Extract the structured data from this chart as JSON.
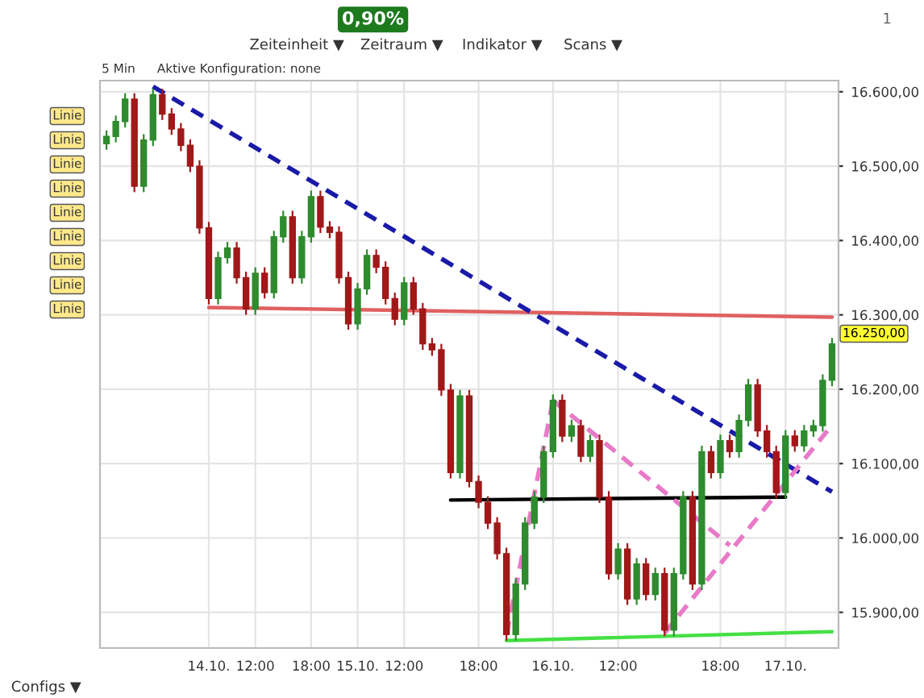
{
  "chart_data": {
    "type": "candlestick",
    "categories": [
      null,
      null,
      null,
      null,
      null,
      null,
      null,
      null,
      null,
      null,
      null,
      "14.10.",
      null,
      null,
      null,
      null,
      "12:00",
      null,
      null,
      null,
      null,
      null,
      "18:00",
      null,
      null,
      null,
      null,
      "15.10.",
      null,
      null,
      null,
      null,
      "12:00",
      null,
      null,
      null,
      null,
      null,
      null,
      null,
      "18:00",
      null,
      null,
      null,
      null,
      null,
      null,
      null,
      "16.10.",
      null,
      null,
      null,
      null,
      null,
      null,
      "12:00",
      null,
      null,
      null,
      null,
      null,
      null,
      null,
      null,
      null,
      null,
      "18:00",
      null,
      null,
      null,
      null,
      null,
      null,
      "17.10.",
      null,
      null,
      null,
      null,
      null
    ],
    "ohlc": [
      [
        16530,
        16548,
        16522,
        16540
      ],
      [
        16540,
        16568,
        16532,
        16560
      ],
      [
        16560,
        16598,
        16552,
        16590
      ],
      [
        16590,
        16598,
        16465,
        16473
      ],
      [
        16473,
        16543,
        16465,
        16535
      ],
      [
        16535,
        16604,
        16527,
        16596
      ],
      [
        16596,
        16604,
        16562,
        16570
      ],
      [
        16570,
        16578,
        16542,
        16550
      ],
      [
        16550,
        16558,
        16520,
        16528
      ],
      [
        16528,
        16536,
        16492,
        16500
      ],
      [
        16500,
        16508,
        16409,
        16417
      ],
      [
        16417,
        16425,
        16314,
        16322
      ],
      [
        16322,
        16385,
        16314,
        16377
      ],
      [
        16377,
        16398,
        16369,
        16390
      ],
      [
        16390,
        16398,
        16342,
        16350
      ],
      [
        16350,
        16358,
        16300,
        16308
      ],
      [
        16308,
        16364,
        16300,
        16356
      ],
      [
        16356,
        16364,
        16322,
        16330
      ],
      [
        16330,
        16413,
        16322,
        16405
      ],
      [
        16405,
        16440,
        16397,
        16432
      ],
      [
        16432,
        16440,
        16342,
        16350
      ],
      [
        16350,
        16413,
        16342,
        16405
      ],
      [
        16405,
        16467,
        16397,
        16459
      ],
      [
        16459,
        16467,
        16410,
        16418
      ],
      [
        16418,
        16426,
        16403,
        16411
      ],
      [
        16411,
        16419,
        16342,
        16350
      ],
      [
        16350,
        16358,
        16280,
        16288
      ],
      [
        16288,
        16343,
        16280,
        16335
      ],
      [
        16335,
        16388,
        16327,
        16380
      ],
      [
        16380,
        16388,
        16356,
        16364
      ],
      [
        16364,
        16372,
        16314,
        16322
      ],
      [
        16322,
        16330,
        16286,
        16294
      ],
      [
        16294,
        16351,
        16286,
        16343
      ],
      [
        16343,
        16351,
        16300,
        16308
      ],
      [
        16308,
        16316,
        16253,
        16261
      ],
      [
        16261,
        16269,
        16245,
        16253
      ],
      [
        16253,
        16261,
        16191,
        16199
      ],
      [
        16199,
        16207,
        16080,
        16088
      ],
      [
        16088,
        16199,
        16080,
        16191
      ],
      [
        16191,
        16199,
        16068,
        16076
      ],
      [
        16076,
        16084,
        16040,
        16048
      ],
      [
        16048,
        16056,
        16012,
        16020
      ],
      [
        16020,
        16028,
        15971,
        15979
      ],
      [
        15979,
        15987,
        15862,
        15870
      ],
      [
        15870,
        15946,
        15862,
        15938
      ],
      [
        15938,
        16028,
        15930,
        16020
      ],
      [
        16020,
        16063,
        16012,
        16055
      ],
      [
        16055,
        16124,
        16047,
        16116
      ],
      [
        16116,
        16193,
        16108,
        16185
      ],
      [
        16185,
        16193,
        16129,
        16137
      ],
      [
        16137,
        16159,
        16129,
        16151
      ],
      [
        16151,
        16159,
        16102,
        16110
      ],
      [
        16110,
        16139,
        16102,
        16131
      ],
      [
        16131,
        16139,
        16047,
        16055
      ],
      [
        16055,
        16063,
        15944,
        15952
      ],
      [
        15952,
        15993,
        15944,
        15985
      ],
      [
        15985,
        15993,
        15910,
        15918
      ],
      [
        15918,
        15973,
        15910,
        15965
      ],
      [
        15965,
        15973,
        15916,
        15924
      ],
      [
        15924,
        15960,
        15916,
        15952
      ],
      [
        15952,
        15960,
        15868,
        15876
      ],
      [
        15876,
        15960,
        15868,
        15952
      ],
      [
        15952,
        16063,
        15944,
        16055
      ],
      [
        16055,
        16063,
        15930,
        15938
      ],
      [
        15938,
        16124,
        15930,
        16116
      ],
      [
        16116,
        16124,
        16080,
        16088
      ],
      [
        16088,
        16139,
        16080,
        16131
      ],
      [
        16131,
        16139,
        16108,
        16116
      ],
      [
        16116,
        16166,
        16108,
        16158
      ],
      [
        16158,
        16214,
        16150,
        16206
      ],
      [
        16206,
        16214,
        16136,
        16144
      ],
      [
        16144,
        16152,
        16108,
        16116
      ],
      [
        16116,
        16124,
        16053,
        16061
      ],
      [
        16061,
        16145,
        16053,
        16137
      ],
      [
        16137,
        16145,
        16116,
        16124
      ],
      [
        16124,
        16152,
        16116,
        16144
      ],
      [
        16144,
        16159,
        16136,
        16151
      ],
      [
        16151,
        16220,
        16143,
        16212
      ],
      [
        16212,
        16269,
        16204,
        16261
      ]
    ],
    "series": [
      {
        "type": "line",
        "color": "#e06060",
        "line_style": "solid",
        "values": [
          null,
          null,
          null,
          null,
          null,
          null,
          null,
          null,
          null,
          null,
          null,
          16310,
          null,
          null,
          null,
          null,
          null,
          null,
          null,
          null,
          null,
          null,
          null,
          null,
          null,
          null,
          null,
          null,
          null,
          null,
          null,
          null,
          null,
          null,
          null,
          null,
          null,
          null,
          null,
          null,
          null,
          null,
          null,
          null,
          null,
          null,
          null,
          null,
          null,
          null,
          null,
          null,
          null,
          null,
          null,
          null,
          null,
          null,
          null,
          null,
          null,
          null,
          null,
          null,
          null,
          null,
          null,
          null,
          null,
          null,
          null,
          null,
          null,
          null,
          null,
          null,
          null,
          null,
          16297
        ]
      },
      {
        "type": "line",
        "color": "#1a1aa8",
        "line_style": "dashed",
        "values": [
          null,
          null,
          null,
          null,
          null,
          16607,
          null,
          null,
          null,
          null,
          null,
          null,
          null,
          null,
          null,
          null,
          null,
          null,
          null,
          null,
          null,
          null,
          null,
          null,
          null,
          null,
          null,
          null,
          null,
          null,
          null,
          null,
          null,
          null,
          null,
          null,
          null,
          null,
          null,
          null,
          null,
          null,
          null,
          null,
          null,
          null,
          null,
          null,
          null,
          null,
          null,
          null,
          null,
          null,
          null,
          null,
          null,
          null,
          null,
          null,
          null,
          null,
          null,
          null,
          null,
          null,
          null,
          null,
          null,
          null,
          null,
          null,
          null,
          null,
          null,
          null,
          null,
          null,
          16062
        ]
      },
      {
        "type": "line",
        "color": "#000000",
        "line_style": "solid",
        "values": [
          null,
          null,
          null,
          null,
          null,
          null,
          null,
          null,
          null,
          null,
          null,
          null,
          null,
          null,
          null,
          null,
          null,
          null,
          null,
          null,
          null,
          null,
          null,
          null,
          null,
          null,
          null,
          null,
          null,
          null,
          null,
          null,
          null,
          null,
          null,
          null,
          null,
          16051,
          null,
          null,
          null,
          null,
          null,
          null,
          null,
          null,
          null,
          null,
          null,
          null,
          null,
          null,
          null,
          null,
          null,
          null,
          null,
          null,
          null,
          null,
          null,
          null,
          null,
          null,
          null,
          null,
          null,
          null,
          null,
          null,
          null,
          null,
          null,
          16055,
          null,
          null,
          null,
          null,
          null
        ]
      },
      {
        "type": "line",
        "color": "#44e044",
        "line_style": "solid",
        "values": [
          null,
          null,
          null,
          null,
          null,
          null,
          null,
          null,
          null,
          null,
          null,
          null,
          null,
          null,
          null,
          null,
          null,
          null,
          null,
          null,
          null,
          null,
          null,
          null,
          null,
          null,
          null,
          null,
          null,
          null,
          null,
          null,
          null,
          null,
          null,
          null,
          null,
          null,
          null,
          null,
          null,
          null,
          null,
          15862,
          null,
          null,
          null,
          null,
          null,
          null,
          null,
          null,
          null,
          null,
          null,
          null,
          null,
          null,
          null,
          null,
          null,
          null,
          null,
          null,
          null,
          null,
          null,
          null,
          null,
          null,
          null,
          null,
          null,
          null,
          null,
          null,
          null,
          null,
          15874
        ]
      },
      {
        "type": "line",
        "color": "#e87ac8",
        "line_style": "dashed",
        "values": [
          null,
          null,
          null,
          null,
          null,
          null,
          null,
          null,
          null,
          null,
          null,
          null,
          null,
          null,
          null,
          null,
          null,
          null,
          null,
          null,
          null,
          null,
          null,
          null,
          null,
          null,
          null,
          null,
          null,
          null,
          null,
          null,
          null,
          null,
          null,
          null,
          null,
          null,
          null,
          null,
          null,
          null,
          null,
          15870,
          null,
          null,
          null,
          null,
          16185,
          null,
          null,
          null,
          null,
          null,
          null,
          null,
          null,
          null,
          null,
          null,
          null,
          null,
          null,
          null,
          null,
          null,
          null,
          null,
          null,
          null,
          null,
          null,
          null,
          null,
          null,
          null,
          null,
          null,
          null
        ]
      },
      {
        "type": "line",
        "color": "#e87ac8",
        "line_style": "dashed",
        "values": [
          null,
          null,
          null,
          null,
          null,
          null,
          null,
          null,
          null,
          null,
          null,
          null,
          null,
          null,
          null,
          null,
          null,
          null,
          null,
          null,
          null,
          null,
          null,
          null,
          null,
          null,
          null,
          null,
          null,
          null,
          null,
          null,
          null,
          null,
          null,
          null,
          null,
          null,
          null,
          null,
          null,
          null,
          null,
          null,
          null,
          null,
          null,
          null,
          16185,
          null,
          null,
          null,
          null,
          null,
          null,
          null,
          null,
          null,
          null,
          null,
          null,
          null,
          null,
          null,
          null,
          null,
          null,
          15990,
          null,
          null,
          null,
          null,
          null,
          null,
          null,
          null,
          null,
          null,
          null
        ]
      },
      {
        "type": "line",
        "color": "#e87ac8",
        "line_style": "dashed",
        "values": [
          null,
          null,
          null,
          null,
          null,
          null,
          null,
          null,
          null,
          null,
          null,
          null,
          null,
          null,
          null,
          null,
          null,
          null,
          null,
          null,
          null,
          null,
          null,
          null,
          null,
          null,
          null,
          null,
          null,
          null,
          null,
          null,
          null,
          null,
          null,
          null,
          null,
          null,
          null,
          null,
          null,
          null,
          null,
          null,
          null,
          null,
          null,
          null,
          null,
          null,
          null,
          null,
          null,
          null,
          null,
          null,
          null,
          null,
          null,
          null,
          15872,
          null,
          null,
          null,
          null,
          null,
          null,
          null,
          null,
          null,
          null,
          null,
          null,
          null,
          null,
          null,
          null,
          null,
          16152
        ]
      }
    ],
    "ylim": [
      15852,
      16615
    ],
    "yticks": [
      {
        "value": 15900,
        "label": "15.900,00"
      },
      {
        "value": 16000,
        "label": "16.000,00"
      },
      {
        "value": 16100,
        "label": "16.100,00"
      },
      {
        "value": 16200,
        "label": "16.200,00"
      },
      {
        "value": 16300,
        "label": "16.300,00"
      },
      {
        "value": 16400,
        "label": "16.400,00"
      },
      {
        "value": 16500,
        "label": "16.500,00"
      },
      {
        "value": 16600,
        "label": "16.600,00"
      }
    ],
    "grid": true,
    "legend": false,
    "annotations": [
      "0,90%",
      "Zeiteinheit ▼",
      "Zeitraum ▼",
      "Indikator ▼",
      "Scans ▼",
      "5 Min",
      "Aktive Konfiguration: none",
      "Linie",
      "Linie",
      "Linie",
      "Linie",
      "Linie",
      "Linie",
      "Linie",
      "Linie",
      "Linie",
      "Configs ▼",
      "1",
      "16.250,00"
    ]
  }
}
